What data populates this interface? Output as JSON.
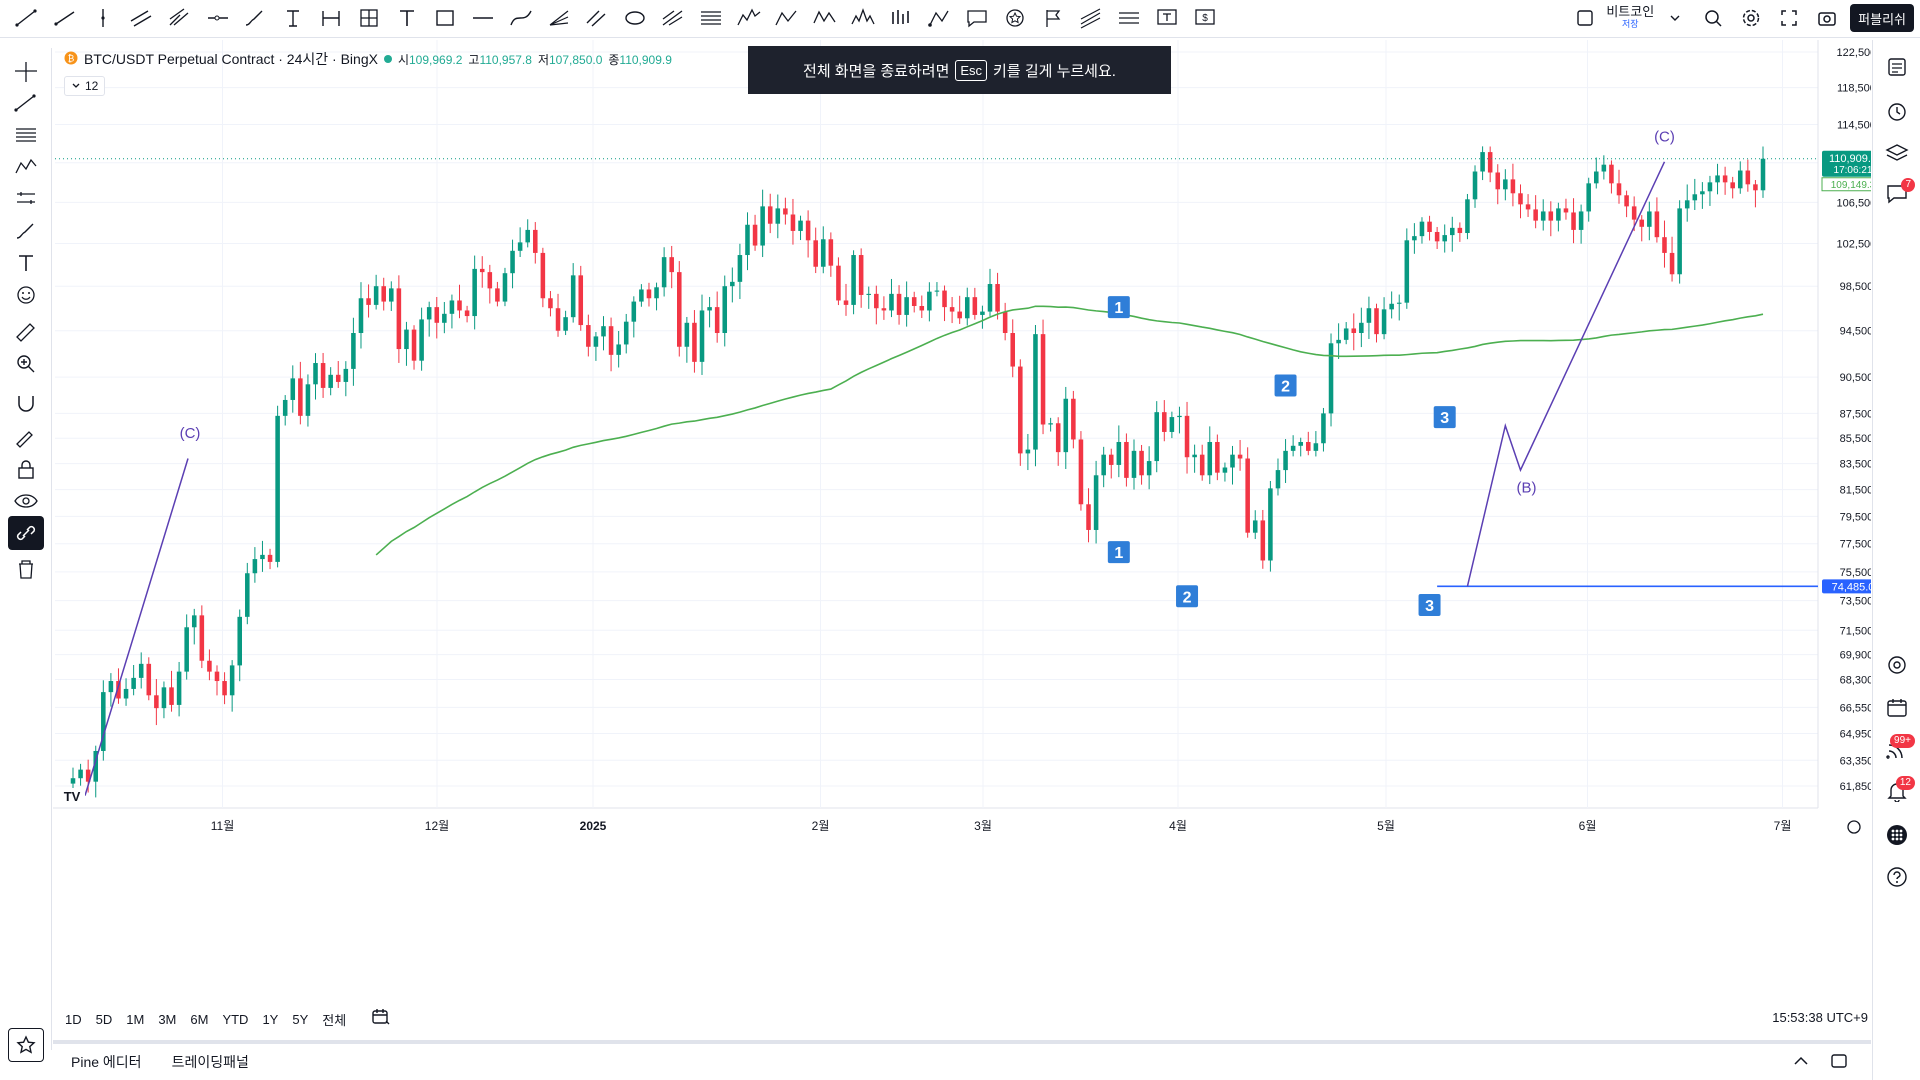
{
  "toolbar": {
    "draw_tools": [
      "trend-line-icon",
      "ray-icon",
      "vertical-line-icon",
      "parallel-channel-icon",
      "pitchfork-icon",
      "horizontal-ray-icon",
      "brush-icon",
      "text-price-icon",
      "date-range-icon",
      "long-short-icon",
      "text-icon",
      "rectangle-icon",
      "horizontal-line-icon",
      "curve-icon",
      "fib-fan-icon",
      "fib-channel-icon",
      "ellipse-icon",
      "gann-icon",
      "fib-retracement-icon",
      "elliott-wave-icon",
      "abcd-icon",
      "xabcd-icon",
      "head-shoulders-icon",
      "bars-pattern-icon",
      "anchored-vwap-icon",
      "callout-icon",
      "sticker-icon",
      "flag-icon",
      "regression-icon",
      "parallel-lines-icon",
      "text-note-icon",
      "price-note-icon"
    ],
    "symbol_name": "비트코인",
    "symbol_sub": "저장",
    "publish_label": "퍼블리쉬"
  },
  "legend": {
    "title": "BTC/USDT Perpetual Contract · 24시간 · BingX",
    "open_label": "시",
    "open": "109,969.2",
    "high_label": "고",
    "high": "110,957.8",
    "low_label": "저",
    "low": "107,850.0",
    "close_label": "종",
    "close": "110,909.9",
    "collapse_count": "12"
  },
  "toast": {
    "before": "전체 화면을 종료하려면",
    "key": "Esc",
    "after": "키를 길게 누르세요."
  },
  "left_tools": [
    "crosshair-icon",
    "trend-line-icon",
    "fib-icon",
    "pattern-icon",
    "forecast-icon",
    "brush-icon",
    "text-icon",
    "emoji-icon",
    "ruler-icon",
    "zoom-icon",
    "magnet-icon",
    "lock-draw-icon",
    "lock-icon",
    "eye-icon",
    "link-icon",
    "trash-icon"
  ],
  "right_tools": [
    {
      "icon": "watchlist-icon",
      "badge": ""
    },
    {
      "icon": "alert-clock-icon",
      "badge": ""
    },
    {
      "icon": "layers-icon",
      "badge": ""
    },
    {
      "icon": "chat-icon",
      "badge": "7"
    },
    {
      "icon": "target-icon",
      "badge": ""
    },
    {
      "icon": "calendar-icon",
      "badge": ""
    },
    {
      "icon": "stream-icon",
      "badge": "99+"
    },
    {
      "icon": "bell-icon",
      "badge": "12"
    },
    {
      "icon": "apps-icon",
      "badge": ""
    },
    {
      "icon": "help-icon",
      "badge": ""
    }
  ],
  "ranges": [
    "1D",
    "5D",
    "1M",
    "3M",
    "6M",
    "YTD",
    "1Y",
    "5Y",
    "전체"
  ],
  "clock": "15:53:38 UTC+9",
  "bottom_tabs": [
    "Pine 에디터",
    "트레이딩패널"
  ],
  "chart_data": {
    "type": "candlestick",
    "x_labels": [
      "11월",
      "12월",
      "2025",
      "2월",
      "3월",
      "4월",
      "5월",
      "6월",
      "7월"
    ],
    "y_ticks": [
      122500,
      118500,
      114500,
      110500,
      106500,
      102500,
      98500,
      94500,
      90500,
      87500,
      85500,
      83500,
      81500,
      79500,
      77500,
      75500,
      73500,
      71500,
      69900,
      68300,
      66550,
      64950,
      63350,
      61850
    ],
    "y_tick_labels": [
      "122,500.0",
      "118,500.0",
      "114,500.0",
      "",
      "106,500.0",
      "102,500.0",
      "98,500.0",
      "94,500.0",
      "90,500.0",
      "87,500.0",
      "85,500.0",
      "83,500.0",
      "81,500.0",
      "79,500.0",
      "77,500.0",
      "75,500.0",
      "73,500.0",
      "71,500.0",
      "69,900.0",
      "68,300.0",
      "66,550.0",
      "64,950.0",
      "63,350.0",
      "61,850.0"
    ],
    "y_scale": "log",
    "y_range": [
      61000,
      124000
    ],
    "current_price": "110,909.9",
    "countdown": "17:06:21",
    "ma_value_label": "109,149.3",
    "support_level": 74485,
    "support_label": "74,485.0",
    "candle_closes": [
      62300,
      62800,
      62100,
      63900,
      67500,
      68200,
      67100,
      67700,
      68400,
      69300,
      67300,
      66500,
      67800,
      66700,
      68800,
      71700,
      72500,
      69500,
      68800,
      68200,
      67300,
      69200,
      72400,
      75400,
      76400,
      76700,
      76200,
      87300,
      88600,
      90400,
      87300,
      89900,
      91700,
      89600,
      90700,
      90100,
      91200,
      94300,
      97400,
      96800,
      98500,
      97100,
      98300,
      92900,
      94600,
      91900,
      95500,
      96600,
      95200,
      96000,
      97200,
      96300,
      95800,
      100100,
      99800,
      98300,
      97100,
      99700,
      101800,
      102600,
      103800,
      101600,
      97400,
      96500,
      94500,
      95700,
      99500,
      95000,
      93100,
      94000,
      94900,
      92400,
      93300,
      95300,
      97100,
      98200,
      97400,
      98400,
      101200,
      99800,
      93100,
      95200,
      91800,
      96300,
      96600,
      94300,
      98500,
      98900,
      101400,
      104300,
      102300,
      106100,
      104400,
      105900,
      105300,
      103700,
      104700,
      102800,
      100300,
      102900,
      100400,
      97200,
      96800,
      101400,
      97700,
      97800,
      96500,
      96300,
      97800,
      95900,
      97500,
      96700,
      96300,
      98000,
      98100,
      96600,
      96200,
      95600,
      97500,
      95900,
      96200,
      98700,
      96200,
      94300,
      91400,
      84300,
      84600,
      94200,
      86600,
      86700,
      84400,
      88700,
      85400,
      80400,
      78500,
      82600,
      84200,
      83400,
      85200,
      82400,
      84500,
      82600,
      83700,
      87600,
      86000,
      87200,
      87300,
      84000,
      84200,
      82600,
      85200,
      82800,
      83200,
      84200,
      83900,
      78300,
      79200,
      76300,
      81600,
      83000,
      84500,
      84900,
      85200,
      84500,
      85100,
      87500,
      93400,
      93700,
      94700,
      94300,
      95200,
      96500,
      94200,
      96400,
      96900,
      97000,
      102800,
      103200,
      104600,
      103600,
      102700,
      103300,
      104000,
      103500,
      106800,
      109600,
      111600,
      109500,
      107800,
      108800,
      107400,
      106300,
      105800,
      104700,
      105600,
      104700,
      105900,
      105500,
      103800,
      105600,
      108400,
      109600,
      110300,
      108400,
      107200,
      106100,
      104800,
      104100,
      105600,
      103100,
      101600,
      99600,
      105900,
      106700,
      107300,
      107600,
      108500,
      109200,
      108500,
      107900,
      109700,
      108300,
      107700,
      110909.9
    ],
    "ma_series_name": "",
    "elliott_labels": [
      "1",
      "2",
      "3",
      "1",
      "2",
      "3"
    ],
    "wave_labels": [
      "(C)",
      "(B)",
      "(C)"
    ]
  }
}
